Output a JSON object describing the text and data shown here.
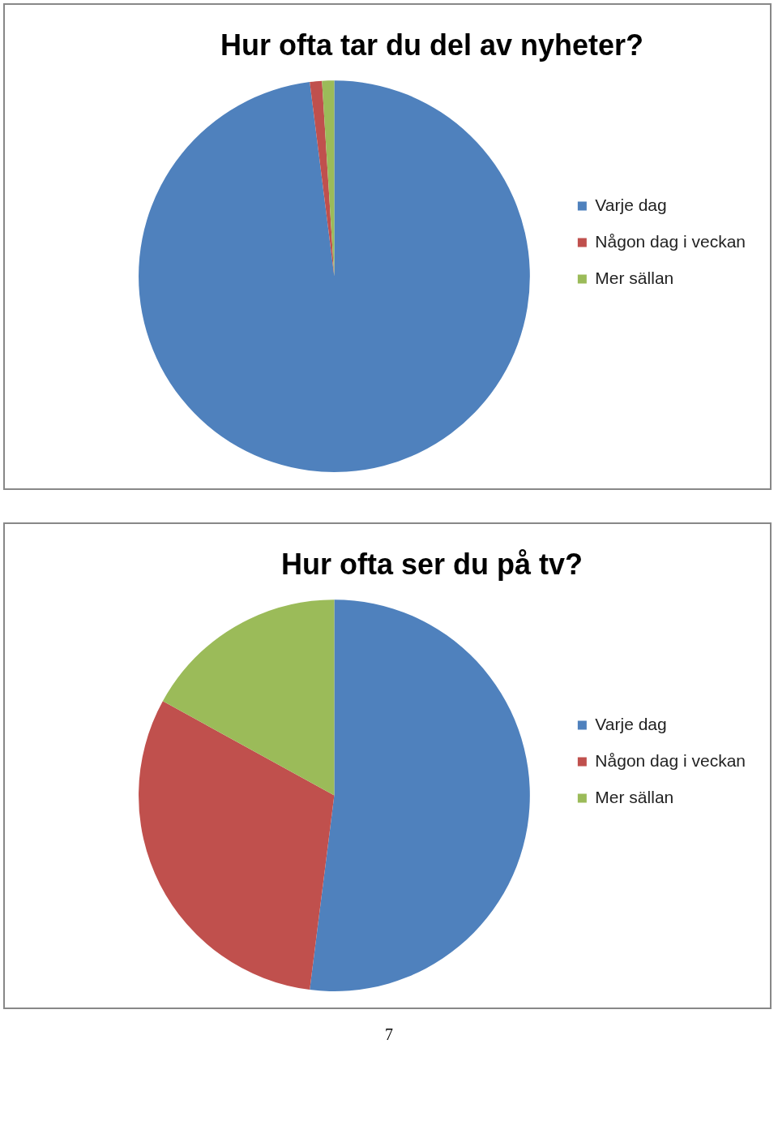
{
  "chart_data": [
    {
      "type": "pie",
      "title": "Hur ofta tar du del av nyheter?",
      "categories": [
        "Varje dag",
        "Någon dag i veckan",
        "Mer sällan"
      ],
      "values": [
        98,
        1,
        1
      ],
      "colors": [
        "#4f81bd",
        "#c0504d",
        "#9bbb59"
      ],
      "legend": "right"
    },
    {
      "type": "pie",
      "title": "Hur ofta ser du på tv?",
      "categories": [
        "Varje dag",
        "Någon dag i veckan",
        "Mer sällan"
      ],
      "values": [
        52,
        31,
        17
      ],
      "colors": [
        "#4f81bd",
        "#c0504d",
        "#9bbb59"
      ],
      "legend": "right",
      "annotations": [
        "7"
      ]
    }
  ]
}
